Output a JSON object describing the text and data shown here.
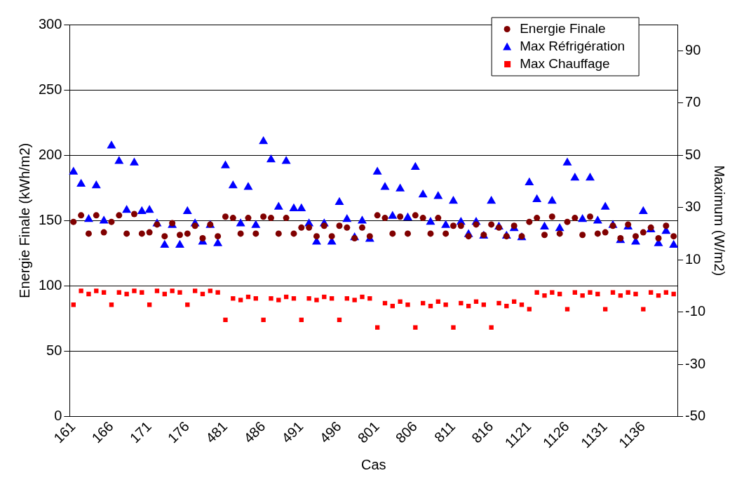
{
  "chart_data": {
    "type": "scatter",
    "xlabel": "Cas",
    "ylabel": "Energie Finale (kWh/m2)",
    "y2label": "Maximum (W/m2)",
    "categories": [
      "161",
      null,
      null,
      null,
      null,
      "166",
      null,
      null,
      null,
      null,
      "171",
      null,
      null,
      null,
      null,
      "176",
      null,
      null,
      null,
      null,
      "481",
      null,
      null,
      null,
      null,
      "486",
      null,
      null,
      null,
      null,
      "491",
      null,
      null,
      null,
      null,
      "496",
      null,
      null,
      null,
      null,
      "801",
      null,
      null,
      null,
      null,
      "806",
      null,
      null,
      null,
      null,
      "811",
      null,
      null,
      null,
      null,
      "816",
      null,
      null,
      null,
      null,
      "1121",
      null,
      null,
      null,
      null,
      "1126",
      null,
      null,
      null,
      null,
      "1131",
      null,
      null,
      null,
      null,
      "1136",
      null,
      null,
      null,
      null
    ],
    "series": [
      {
        "name": "Energie Finale",
        "color": "#800000",
        "marker": "circle",
        "values": [
          149,
          154,
          140,
          154,
          141,
          149,
          154,
          140,
          155,
          140,
          141,
          147,
          138,
          148,
          139,
          140,
          146,
          136.5,
          147,
          138,
          153,
          152,
          140,
          152,
          140,
          153,
          152,
          140,
          152,
          140,
          144.6,
          144.6,
          138,
          146,
          138,
          146,
          144.6,
          136.5,
          144.6,
          138,
          154,
          152,
          140,
          153,
          140,
          154,
          152,
          140,
          152,
          140,
          146,
          146,
          138,
          147,
          139,
          147,
          144.6,
          138,
          146,
          138,
          149,
          152,
          139,
          153,
          140,
          149,
          152,
          139,
          153,
          140,
          141,
          146,
          136.5,
          147,
          138,
          141,
          144.6,
          136.5,
          146,
          138
        ]
      },
      {
        "name": "Max Réfrigération",
        "color": "#0000ff",
        "marker": "triangle",
        "axis": "y2",
        "values": [
          43.6,
          39,
          25.5,
          38.4,
          24.9,
          53.6,
          47.7,
          29,
          47.1,
          28.5,
          29,
          23.8,
          15.6,
          23.2,
          15.6,
          28.5,
          23.8,
          16.8,
          23.2,
          16.2,
          46,
          38.4,
          23.8,
          37.8,
          23.2,
          55.3,
          48.3,
          30.2,
          47.7,
          29.6,
          29.6,
          23.8,
          16.8,
          23.8,
          16.8,
          32,
          25.5,
          18.5,
          24.9,
          17.9,
          43.6,
          37.8,
          26.7,
          37.2,
          26.1,
          45.4,
          34.9,
          24.4,
          34.3,
          23.2,
          32.5,
          24.4,
          19.7,
          24.4,
          19.1,
          32.5,
          22.6,
          19.1,
          22,
          18.5,
          39.5,
          33.1,
          22.6,
          32.5,
          22,
          47.1,
          41.3,
          25.5,
          41.3,
          24.9,
          30.2,
          23.2,
          17.4,
          22.6,
          16.8,
          28.5,
          21.5,
          16.2,
          20.9,
          15.6
        ]
      },
      {
        "name": "Max Chauffage",
        "color": "#ff0000",
        "marker": "square",
        "axis": "y2",
        "values": [
          -7.2,
          -1.9,
          -3.1,
          -1.9,
          -2.5,
          -7.2,
          -2.5,
          -3.1,
          -1.9,
          -2.5,
          -7.2,
          -1.9,
          -3.1,
          -1.9,
          -2.5,
          -7.2,
          -1.9,
          -3.1,
          -1.9,
          -2.5,
          -13,
          -4.8,
          -5.4,
          -4.2,
          -4.8,
          -13,
          -4.8,
          -5.4,
          -4.2,
          -4.8,
          -13,
          -4.8,
          -5.4,
          -4.2,
          -4.8,
          -13,
          -4.8,
          -5.4,
          -4.2,
          -4.8,
          -15.9,
          -6.6,
          -7.7,
          -6,
          -7.2,
          -15.9,
          -6.6,
          -7.7,
          -6,
          -7.2,
          -15.9,
          -6.6,
          -7.7,
          -6,
          -7.2,
          -15.9,
          -6.6,
          -7.7,
          -6,
          -7.2,
          -8.9,
          -2.5,
          -3.7,
          -2.5,
          -3.1,
          -8.9,
          -2.5,
          -3.7,
          -2.5,
          -3.1,
          -8.9,
          -2.5,
          -3.7,
          -2.5,
          -3.1,
          -8.9,
          -2.5,
          -3.7,
          -2.5,
          -3.1
        ]
      }
    ],
    "ylim": [
      0,
      300
    ],
    "yticks": [
      0,
      50,
      100,
      150,
      200,
      250,
      300
    ],
    "y2lim": [
      -50,
      100
    ],
    "y2ticks": [
      -50,
      -30,
      -10,
      10,
      30,
      50,
      70,
      90
    ],
    "grid": "y",
    "legend": "top right"
  }
}
